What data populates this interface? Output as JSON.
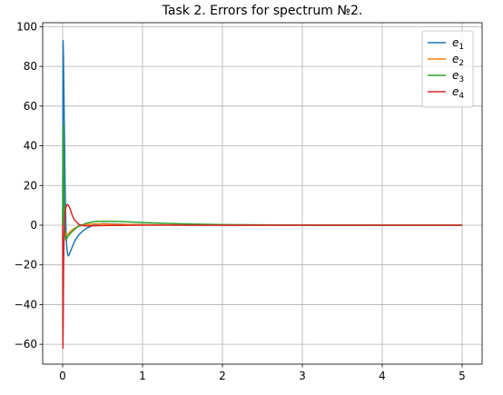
{
  "chart_data": {
    "type": "line",
    "title": "Task 2. Errors for spectrum №2.",
    "xlabel": "",
    "ylabel": "",
    "xlim": [
      -0.25,
      5.25
    ],
    "ylim": [
      -70,
      102
    ],
    "x_ticks": [
      0,
      1,
      2,
      3,
      4,
      5
    ],
    "x_tick_labels": [
      "0",
      "1",
      "2",
      "3",
      "4",
      "5"
    ],
    "y_ticks": [
      -60,
      -40,
      -20,
      0,
      20,
      40,
      60,
      80,
      100
    ],
    "y_tick_labels": [
      "−60",
      "−40",
      "−20",
      "0",
      "20",
      "40",
      "60",
      "80",
      "100"
    ],
    "grid": true,
    "legend_position": "top-right",
    "series": [
      {
        "name": "e1",
        "name_base": "e",
        "name_sub": "1",
        "color": "#1f77b4",
        "x": [
          0,
          0.005,
          0.01,
          0.02,
          0.03,
          0.04,
          0.05,
          0.06,
          0.07,
          0.08,
          0.1,
          0.12,
          0.15,
          0.2,
          0.25,
          0.3,
          0.4,
          0.5,
          0.6,
          0.8,
          1.0,
          1.5,
          2.0,
          3.0,
          4.0,
          5.0
        ],
        "y": [
          0,
          93,
          85,
          55,
          22,
          0,
          -10,
          -14,
          -15.5,
          -15,
          -13,
          -11,
          -8,
          -5,
          -3,
          -1.5,
          0.2,
          0.8,
          0.7,
          0.4,
          0.2,
          0.05,
          0,
          0,
          0,
          0
        ]
      },
      {
        "name": "e2",
        "name_base": "e",
        "name_sub": "2",
        "color": "#ff7f0e",
        "x": [
          0,
          0.005,
          0.01,
          0.02,
          0.03,
          0.04,
          0.05,
          0.07,
          0.1,
          0.15,
          0.2,
          0.3,
          0.4,
          0.5,
          0.7,
          1.0,
          1.5,
          2.0,
          3.0,
          4.0,
          5.0
        ],
        "y": [
          0,
          5,
          3,
          -1,
          -3,
          -4.5,
          -5,
          -4.5,
          -3,
          -1.5,
          -0.5,
          0.3,
          0.6,
          0.6,
          0.4,
          0.2,
          0.05,
          0,
          0,
          0,
          0
        ]
      },
      {
        "name": "e3",
        "name_base": "e",
        "name_sub": "3",
        "color": "#2ca02c",
        "x": [
          0,
          0.005,
          0.01,
          0.015,
          0.02,
          0.03,
          0.04,
          0.05,
          0.06,
          0.08,
          0.1,
          0.15,
          0.2,
          0.3,
          0.4,
          0.5,
          0.6,
          0.8,
          1.0,
          1.5,
          2.0,
          2.5,
          3.0,
          4.0,
          5.0
        ],
        "y": [
          0,
          20,
          50,
          30,
          5,
          -5,
          -7.5,
          -7,
          -6,
          -5,
          -4,
          -2,
          -0.5,
          1,
          1.8,
          2.0,
          2.0,
          1.7,
          1.3,
          0.7,
          0.3,
          0.15,
          0.05,
          0,
          0
        ]
      },
      {
        "name": "e4",
        "name_base": "e",
        "name_sub": "4",
        "color": "#d62728",
        "x": [
          0,
          0.003,
          0.007,
          0.012,
          0.02,
          0.03,
          0.04,
          0.06,
          0.08,
          0.1,
          0.12,
          0.15,
          0.2,
          0.25,
          0.3,
          0.4,
          0.5,
          0.7,
          1.0,
          2.0,
          3.0,
          4.0,
          5.0
        ],
        "y": [
          0,
          -62,
          -50,
          -20,
          0,
          6,
          9,
          10.5,
          9.5,
          7.5,
          5,
          2.5,
          0.5,
          -0.2,
          -0.4,
          -0.3,
          -0.2,
          -0.1,
          0,
          0,
          0,
          0,
          0
        ]
      }
    ]
  }
}
